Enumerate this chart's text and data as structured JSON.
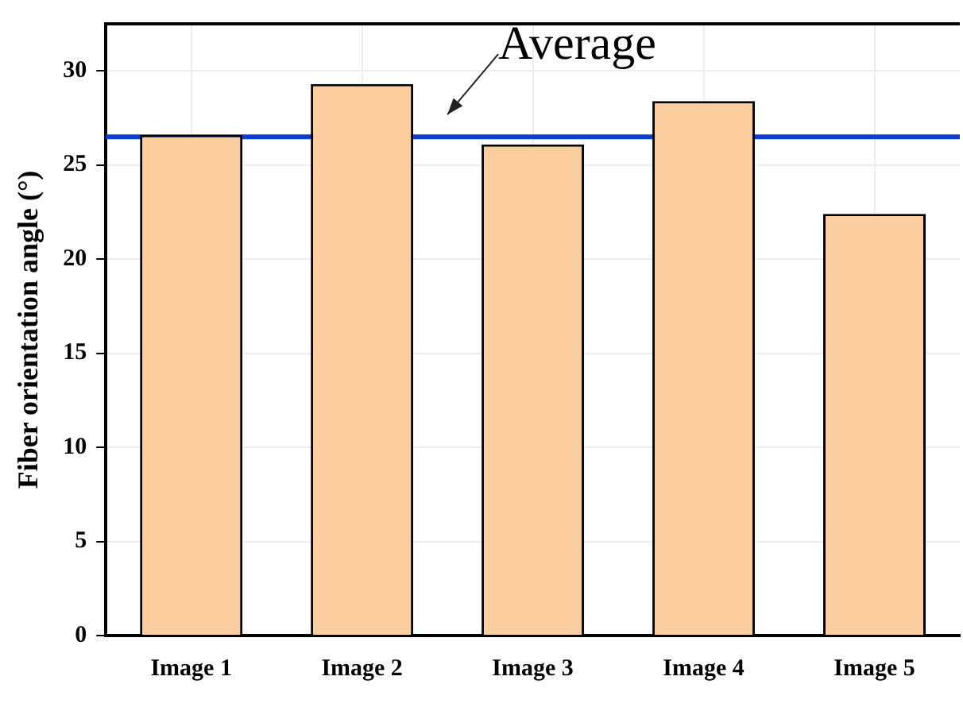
{
  "chart_data": {
    "type": "bar",
    "ylabel": "Fiber orientation angle (°)",
    "categories": [
      "Image 1",
      "Image 2",
      "Image 3",
      "Image 4",
      "Image 5"
    ],
    "values": [
      26.6,
      29.3,
      26.1,
      28.4,
      22.4
    ],
    "color": "#fccd9e",
    "ylim": [
      0,
      32.5
    ],
    "yticks": [
      0,
      5,
      10,
      15,
      20,
      25,
      30
    ],
    "grid": true,
    "ref_lines": [
      {
        "axis": "y",
        "value": 26.5,
        "label": "Average",
        "color": "#0a3fd6"
      }
    ]
  }
}
